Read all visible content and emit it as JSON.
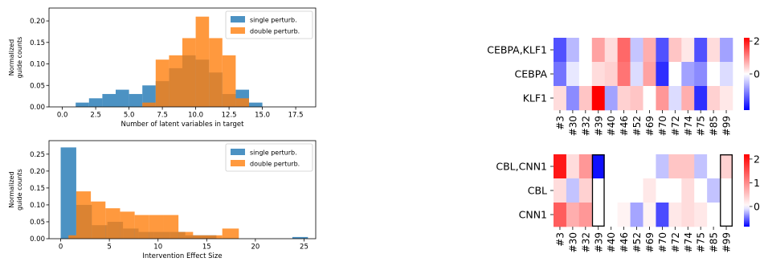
{
  "chart_data": [
    {
      "id": "top-hist",
      "type": "bar",
      "xlabel": "Number of latent variables in target",
      "ylabel": [
        "Normalized",
        "guide counts"
      ],
      "xlim": [
        -1,
        19
      ],
      "ylim": [
        0,
        0.23
      ],
      "xticks": [
        0.0,
        2.5,
        5.0,
        7.5,
        10.0,
        12.5,
        15.0,
        17.5
      ],
      "xtick_labels": [
        "0.0",
        "2.5",
        "5.0",
        "7.5",
        "10.0",
        "12.5",
        "15.0",
        "17.5"
      ],
      "yticks": [
        0.0,
        0.05,
        0.1,
        0.15,
        0.2
      ],
      "ytick_labels": [
        "0.00",
        "0.05",
        "0.10",
        "0.15",
        "0.20"
      ],
      "legend_position": "top-right",
      "series": [
        {
          "name": "single perturb.",
          "color": "#1f77b4",
          "bins": [
            [
              1,
              2,
              0.01
            ],
            [
              2,
              3,
              0.02
            ],
            [
              3,
              4,
              0.03
            ],
            [
              4,
              5,
              0.04
            ],
            [
              5,
              6,
              0.03
            ],
            [
              6,
              7,
              0.05
            ],
            [
              7,
              8,
              0.06
            ],
            [
              8,
              9,
              0.09
            ],
            [
              9,
              10,
              0.12
            ],
            [
              10,
              11,
              0.11
            ],
            [
              11,
              12,
              0.08
            ],
            [
              12,
              13,
              0.03
            ],
            [
              13,
              14,
              0.04
            ],
            [
              14,
              15,
              0.01
            ]
          ]
        },
        {
          "name": "double perturb.",
          "color": "#ff7f0e",
          "bins": [
            [
              6,
              7,
              0.01
            ],
            [
              7,
              8,
              0.11
            ],
            [
              8,
              9,
              0.12
            ],
            [
              9,
              10,
              0.16
            ],
            [
              10,
              11,
              0.21
            ],
            [
              11,
              12,
              0.16
            ],
            [
              12,
              13,
              0.12
            ],
            [
              13,
              14,
              0.02
            ]
          ]
        }
      ]
    },
    {
      "id": "bottom-hist",
      "type": "bar",
      "xlabel": "Intervention Effect Size",
      "ylabel": [
        "Normalized",
        "guide counts"
      ],
      "xlim": [
        -1.2,
        26.2
      ],
      "ylim": [
        0,
        0.29
      ],
      "xticks": [
        0,
        5,
        10,
        15,
        20,
        25
      ],
      "xtick_labels": [
        "0",
        "5",
        "10",
        "15",
        "20",
        "25"
      ],
      "yticks": [
        0.0,
        0.05,
        0.1,
        0.15,
        0.2,
        0.25
      ],
      "ytick_labels": [
        "0.00",
        "0.05",
        "0.10",
        "0.15",
        "0.20",
        "0.25"
      ],
      "legend_position": "top-right",
      "series": [
        {
          "name": "single perturb.",
          "color": "#1f77b4",
          "bins": [
            [
              0,
              1.6,
              0.27
            ],
            [
              1.6,
              3.2,
              0.1
            ],
            [
              3.2,
              4.8,
              0.04
            ],
            [
              4.8,
              6.4,
              0.05
            ],
            [
              6.4,
              8.0,
              0.03
            ],
            [
              8.0,
              9.6,
              0.02
            ],
            [
              9.6,
              11.2,
              0.02
            ],
            [
              11.2,
              12.8,
              0.02
            ],
            [
              12.8,
              14.4,
              0.01
            ],
            [
              14.4,
              16.0,
              0.01
            ],
            [
              23.8,
              25.4,
              0.005
            ]
          ]
        },
        {
          "name": "double perturb.",
          "color": "#ff7f0e",
          "bins": [
            [
              0.8,
              1.6,
              0.01
            ],
            [
              1.6,
              3.1,
              0.14
            ],
            [
              3.1,
              4.6,
              0.11
            ],
            [
              4.6,
              6.1,
              0.09
            ],
            [
              6.1,
              7.6,
              0.08
            ],
            [
              7.6,
              9.1,
              0.07
            ],
            [
              9.1,
              10.6,
              0.07
            ],
            [
              10.6,
              12.1,
              0.07
            ],
            [
              12.1,
              13.6,
              0.02
            ],
            [
              13.6,
              15.1,
              0.01
            ],
            [
              15.1,
              16.6,
              0.01
            ],
            [
              16.6,
              18.3,
              0.03
            ]
          ]
        }
      ]
    },
    {
      "id": "top-heatmap",
      "type": "heatmap",
      "rows": [
        "CEBPA,KLF1",
        "CEBPA",
        "KLF1"
      ],
      "columns": [
        "#3",
        "#30",
        "#32",
        "#39",
        "#40",
        "#46",
        "#52",
        "#69",
        "#70",
        "#72",
        "#74",
        "#75",
        "#85",
        "#99"
      ],
      "values": [
        [
          -1.5,
          -0.6,
          0.0,
          0.8,
          0.3,
          1.3,
          -0.5,
          0.7,
          -1.5,
          0.5,
          0.2,
          -1.5,
          0.3,
          -0.8
        ],
        [
          -1.2,
          -0.2,
          0.0,
          0.3,
          0.4,
          1.2,
          -0.3,
          0.8,
          -1.8,
          0.0,
          -0.8,
          -1.0,
          0.0,
          -0.3
        ],
        [
          0.3,
          -1.0,
          0.5,
          2.2,
          -0.8,
          0.4,
          0.5,
          0.0,
          0.9,
          -0.3,
          0.7,
          -1.8,
          0.4,
          0.2
        ]
      ],
      "vmin": -2.2,
      "vmax": 2.2,
      "colorbar_ticks": [
        2,
        0
      ],
      "colorbar_tick_labels": [
        "2",
        "0"
      ],
      "highlighted_columns": []
    },
    {
      "id": "bottom-heatmap",
      "type": "heatmap",
      "rows": [
        "CBL,CNN1",
        "CBL",
        "CNN1"
      ],
      "columns": [
        "#3",
        "#30",
        "#32",
        "#39",
        "#40",
        "#46",
        "#52",
        "#69",
        "#70",
        "#72",
        "#74",
        "#75",
        "#85",
        "#99"
      ],
      "values": [
        [
          2.0,
          0.3,
          0.9,
          -0.8,
          0.0,
          0.0,
          0.0,
          0.0,
          -0.2,
          0.5,
          0.5,
          -0.2,
          0.0,
          0.4
        ],
        [
          0.3,
          -0.2,
          0.4,
          0.0,
          0.0,
          0.0,
          0.0,
          0.2,
          0.0,
          0.0,
          0.3,
          0.0,
          -0.2,
          0.0
        ],
        [
          1.4,
          0.7,
          0.9,
          0.0,
          0.0,
          0.1,
          -0.3,
          0.1,
          -0.6,
          0.2,
          0.3,
          0.2,
          0.0,
          0.0
        ]
      ],
      "vmin": -0.85,
      "vmax": 2.2,
      "colorbar_ticks": [
        2,
        1,
        0
      ],
      "colorbar_tick_labels": [
        "2",
        "1",
        "0"
      ],
      "highlighted_columns": [
        "#39",
        "#99"
      ]
    }
  ]
}
